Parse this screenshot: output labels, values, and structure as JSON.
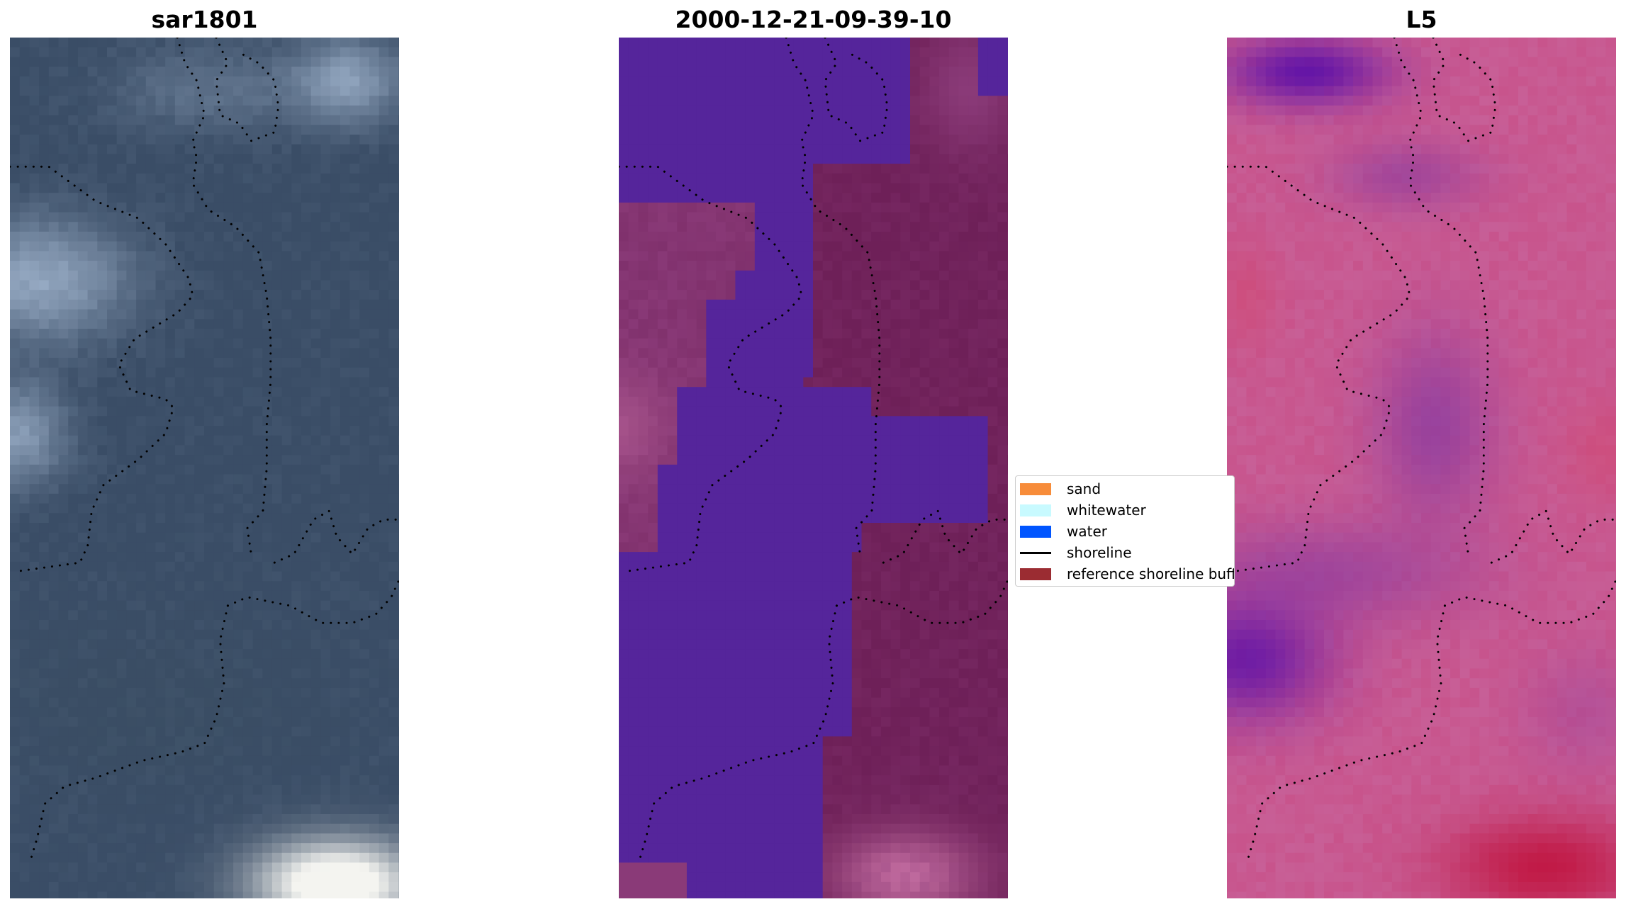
{
  "panels": [
    {
      "title": "sar1801",
      "kind": "rgb",
      "colors": {
        "base": "#3a4d66",
        "bright": "#9fb3cc",
        "hot": "#f4f4f0"
      }
    },
    {
      "title": "2000-12-21-09-39-10",
      "kind": "classified",
      "colors": {
        "water": "#55259b",
        "land": "#6e2058",
        "landLight": "#8a3a78",
        "pink": "#c06a9e"
      }
    },
    {
      "title": "L5",
      "kind": "index",
      "colors": {
        "pink": "#c8548c",
        "violet": "#8a3aa0",
        "deep": "#5a0ea8",
        "red": "#c0103a"
      }
    }
  ],
  "legend": {
    "items": [
      {
        "label": "sand",
        "type": "patch",
        "color": "#f78c3a"
      },
      {
        "label": "whitewater",
        "type": "patch",
        "color": "#c8faff"
      },
      {
        "label": "water",
        "type": "patch",
        "color": "#0055ff"
      },
      {
        "label": "shoreline",
        "type": "line",
        "color": "#000000"
      },
      {
        "label": "reference shoreline buffer",
        "type": "patch",
        "color": "#9b2c32"
      }
    ]
  }
}
